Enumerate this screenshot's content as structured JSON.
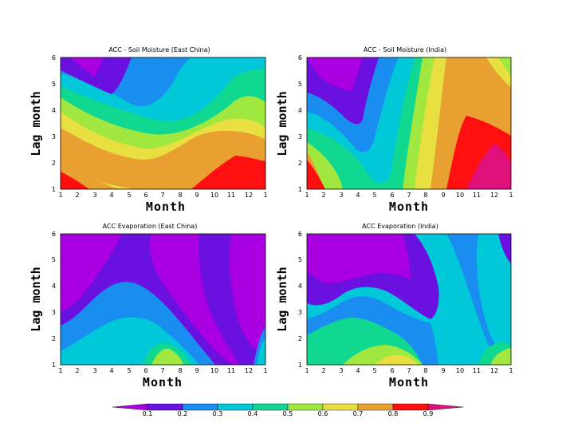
{
  "chart_data": [
    {
      "type": "contour",
      "title": "ACC  -  Soil Moisture  (East China)",
      "xlabel": "Month",
      "ylabel": "Lag month",
      "xticks": [
        "1",
        "2",
        "3",
        "4",
        "5",
        "6",
        "7",
        "8",
        "9",
        "10",
        "11",
        "12",
        "1"
      ],
      "yticks": [
        "1",
        "2",
        "3",
        "4",
        "5",
        "6"
      ],
      "xlim": [
        1,
        13
      ],
      "ylim": [
        1,
        6
      ]
    },
    {
      "type": "contour",
      "title": "ACC  -  Soil Moisture  (India)",
      "xlabel": "Month",
      "ylabel": "Lag month",
      "xticks": [
        "1",
        "2",
        "3",
        "4",
        "5",
        "6",
        "7",
        "8",
        "9",
        "10",
        "11",
        "12",
        "1"
      ],
      "yticks": [
        "1",
        "2",
        "3",
        "4",
        "5",
        "6"
      ],
      "xlim": [
        1,
        13
      ],
      "ylim": [
        1,
        6
      ]
    },
    {
      "type": "contour",
      "title": "ACC      Evaporation  (East China)",
      "xlabel": "Month",
      "ylabel": "Lag month",
      "xticks": [
        "1",
        "2",
        "3",
        "4",
        "5",
        "6",
        "7",
        "8",
        "9",
        "10",
        "11",
        "12",
        "1"
      ],
      "yticks": [
        "1",
        "2",
        "3",
        "4",
        "5",
        "6"
      ],
      "xlim": [
        1,
        13
      ],
      "ylim": [
        1,
        6
      ]
    },
    {
      "type": "contour",
      "title": "ACC      Evaporation  (India)",
      "xlabel": "Month",
      "ylabel": "Lag month",
      "xticks": [
        "1",
        "2",
        "3",
        "4",
        "5",
        "6",
        "7",
        "8",
        "9",
        "10",
        "11",
        "12",
        "1"
      ],
      "yticks": [
        "1",
        "2",
        "3",
        "4",
        "5",
        "6"
      ],
      "xlim": [
        1,
        13
      ],
      "ylim": [
        1,
        6
      ]
    }
  ],
  "colorbar": {
    "labels": [
      "0.1",
      "0.2",
      "0.3",
      "0.4",
      "0.5",
      "0.6",
      "0.7",
      "0.8",
      "0.9"
    ],
    "colors": [
      "#a800e0",
      "#6a10e0",
      "#1a8ef0",
      "#00c8d8",
      "#10d890",
      "#a0e840",
      "#e8e040",
      "#e8a030",
      "#ff1010",
      "#e0107a"
    ]
  }
}
